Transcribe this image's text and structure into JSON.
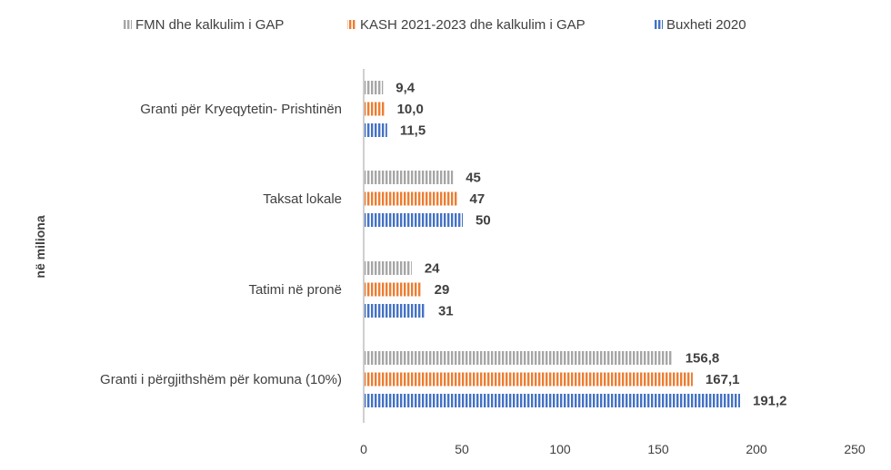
{
  "chart_data": {
    "type": "bar",
    "orientation": "horizontal",
    "categories": [
      "Granti për Kryeqytetin- Prishtinën",
      "Taksat lokale",
      "Tatimi në pronë",
      "Granti i përgjithshëm për komuna (10%)"
    ],
    "series": [
      {
        "name": "FMN dhe kalkulim i GAP",
        "color": "#a6a6a6",
        "values": [
          9.4,
          45,
          24,
          156.8
        ],
        "labels": [
          "9,4",
          "45",
          "24",
          "156,8"
        ]
      },
      {
        "name": "KASH 2021-2023 dhe kalkulim i GAP",
        "color": "#ed7d31",
        "values": [
          10.0,
          47,
          29,
          167.1
        ],
        "labels": [
          "10,0",
          "47",
          "29",
          "167,1"
        ]
      },
      {
        "name": "Buxheti 2020",
        "color": "#4472c4",
        "values": [
          11.5,
          50,
          31,
          191.2
        ],
        "labels": [
          "11,5",
          "50",
          "31",
          "191,2"
        ]
      }
    ],
    "ylabel": "në miliona",
    "xlim": [
      0,
      250
    ],
    "xticks": [
      0,
      50,
      100,
      150,
      200,
      250
    ],
    "legend": "top",
    "grid": false
  }
}
